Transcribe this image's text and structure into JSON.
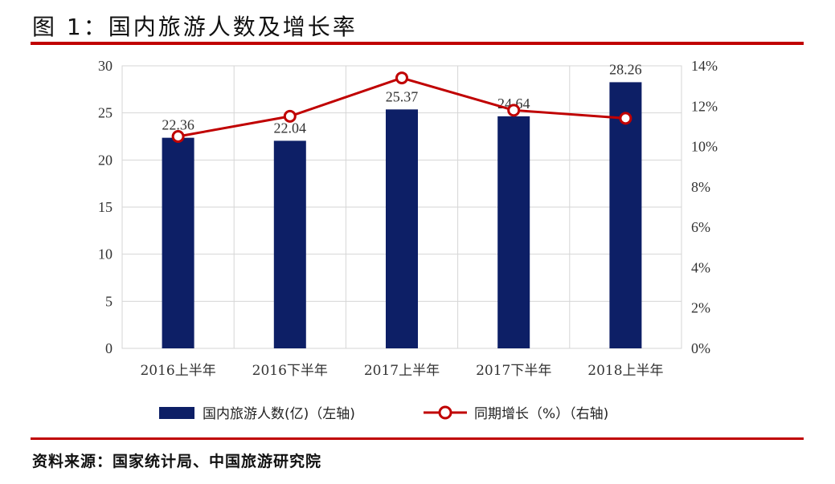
{
  "figure": {
    "title": "图 1：国内旅游人数及增长率",
    "source": "资料来源：国家统计局、中国旅游研究院"
  },
  "colors": {
    "bar": "#0d1f66",
    "line": "#c00000",
    "rule": "#c00000",
    "grid": "#d6d6d6"
  },
  "chart_data": {
    "type": "bar",
    "title": "",
    "categories": [
      "2016上半年",
      "2016下半年",
      "2017上半年",
      "2017下半年",
      "2018上半年"
    ],
    "series": [
      {
        "name": "国内旅游人数(亿)（左轴)",
        "type": "bar",
        "axis": "left",
        "values": [
          22.36,
          22.04,
          25.37,
          24.64,
          28.26
        ],
        "data_labels": [
          "22.36",
          "22.04",
          "25.37",
          "24.64",
          "28.26"
        ]
      },
      {
        "name": "同期增长（%）（右轴)",
        "type": "line",
        "axis": "right",
        "values": [
          10.5,
          11.5,
          13.4,
          11.8,
          11.4
        ]
      }
    ],
    "y_left": {
      "ylim": [
        0,
        30
      ],
      "ticks": [
        "0",
        "5",
        "10",
        "15",
        "20",
        "25",
        "30"
      ]
    },
    "y_right": {
      "ylim": [
        0,
        14
      ],
      "ticks": [
        "0%",
        "2%",
        "4%",
        "6%",
        "8%",
        "10%",
        "12%",
        "14%"
      ]
    },
    "grid": true,
    "legend_position": "bottom"
  }
}
